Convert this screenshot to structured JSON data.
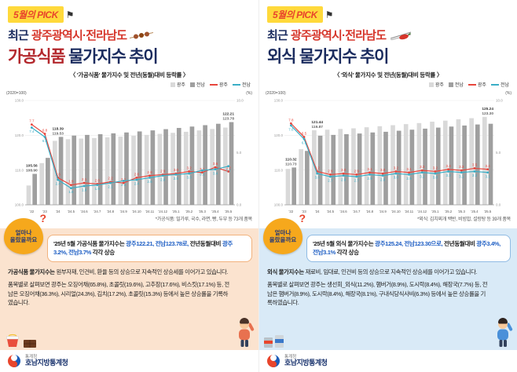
{
  "panels": {
    "left": {
      "badge_label": "5월의 PICK",
      "subtitle_prefix": "최근",
      "subtitle_region": "광주광역시·전라남도",
      "title_highlight": "가공식품",
      "title_rest": " 물가지수 추이",
      "chart_title": "〈 '가공식품' 물가지수 및 전년(동월)대비 등락률 〉",
      "footnote": "*가공식품: 밀가루, 국수, 라면, 빵, 두부 등 73개 품목",
      "question_line1": "얼마나",
      "question_line2": "올랐을까요",
      "question_mark": "?",
      "lead": {
        "s1": "'25년 5월 가공식품 물가지수는 ",
        "s2": "광주122.21, 전남123.78로,",
        "s3": " 전년동월대비 ",
        "s4": "광주3.2%, 전남3.7%",
        "s5": " 각각 상승"
      },
      "body1_bold": "가공식품 물가지수는",
      "body1_rest": " 원부자재, 인건비, 환율 등의 상승으로 지속적인 상승세를 이어가고 있습니다.",
      "body2": "품목별로 살펴보면 광주는 오징어채(65.8%), 초콜릿(19.6%), 고추장(17.6%), 비스킷(17.1%) 등, 전남은 오징어채(36.3%), 시리얼(24.3%), 김치(17.2%), 초콜릿(15.3%) 등에서 높은 상승률을 기록하였습니다."
    },
    "right": {
      "badge_label": "5월의 PICK",
      "subtitle_prefix": "최근",
      "subtitle_region": "광주광역시·전라남도",
      "title_highlight": "외식",
      "title_rest": " 물가지수 추이",
      "chart_title": "〈 '외식' 물가지수 및 전년(동월)대비 등락률 〉",
      "footnote": "*외식: 김치찌개 백반, 비빔밥, 설렁탕 등 39개 품목",
      "question_line1": "얼마나",
      "question_line2": "올랐을까요",
      "question_mark": "?",
      "lead": {
        "s1": "'25년 5월 외식 물가지수는 ",
        "s2": "광주125.24, 전남123.30으로,",
        "s3": " 전년동월대비 ",
        "s4": "광주3.4%, 전남3.1%",
        "s5": " 각각 상승"
      },
      "body1_bold": "외식 물가지수는",
      "body1_rest": " 재료비, 임대료, 인건비 등의 상승으로 지속적인 상승세를 이어가고 있습니다.",
      "body2": "품목별로 살펴보면 광주는 생선회_외식(11.2%), 햄버거(8.9%), 도시락(8.4%), 해장국(7.7%) 등, 전남은 햄버거(8.9%), 도시락(8.4%), 해장국(8.1%), 구내식당식사비(6.3%) 등에서 높은 상승률을 기록하였습니다."
    }
  },
  "legend": {
    "bar1": "광주",
    "bar2": "전남",
    "line1": "광주",
    "line2": "전남"
  },
  "axis": {
    "left_label": "(2020=100)",
    "right_label": "(%)"
  },
  "footer": {
    "agency": "통계청",
    "office": "호남지방통계청"
  },
  "colors": {
    "badge_bg": "#ffd93b",
    "badge_text": "#e8452c",
    "navy": "#1a2b5e",
    "region_red": "#d6362b",
    "highlight_blue": "#1f5fc4",
    "gwangju_line": "#e8453c",
    "jeonnam_line": "#3aaec6",
    "gwangju_bar": "#d9d9d9",
    "jeonnam_bar": "#9f9f9f",
    "left_block_bg": "#fbe3cf",
    "right_block_bg": "#d9eaf7",
    "question_blob": "#f6a81c"
  },
  "chart_data": [
    {
      "type": "bar+line",
      "title": "'가공식품' 물가지수 및 전년(동월)대비 등락률",
      "ylabel_left": "(2020=100)",
      "ylabel_right": "(%)",
      "categories": [
        "'22",
        "'23",
        "'24",
        "'24.5",
        "'24.6",
        "'24.7",
        "'24.8",
        "'24.9",
        "'24.10",
        "'24.11",
        "'24.12",
        "'25.1",
        "'25.2",
        "'25.3",
        "'25.4",
        "'25.5"
      ],
      "bar_series": [
        {
          "name": "광주",
          "color": "#d9d9d9",
          "values": [
            105.56,
            112.0,
            118.39,
            118.87,
            119.05,
            119.2,
            119.4,
            119.6,
            119.85,
            120.1,
            120.4,
            120.7,
            121.0,
            121.4,
            121.8,
            122.21
          ]
        },
        {
          "name": "전남",
          "color": "#9f9f9f",
          "values": [
            108.9,
            113.5,
            119.53,
            119.9,
            120.1,
            120.3,
            120.55,
            120.8,
            121.1,
            121.4,
            121.75,
            122.1,
            122.5,
            122.9,
            123.3,
            123.78
          ]
        }
      ],
      "line_series": [
        {
          "name": "광주",
          "color": "#e8453c",
          "values": [
            7.7,
            6.8,
            2.6,
            1.9,
            2.1,
            2.0,
            2.2,
            2.1,
            2.6,
            2.8,
            2.9,
            3.0,
            3.2,
            3.1,
            3.6,
            3.2
          ]
        },
        {
          "name": "전남",
          "color": "#3aaec6",
          "values": [
            7.4,
            6.5,
            2.4,
            1.6,
            1.8,
            1.9,
            2.1,
            2.3,
            2.4,
            2.6,
            2.8,
            2.9,
            3.0,
            3.3,
            3.4,
            3.7
          ]
        }
      ],
      "ylim_left": [
        100,
        130
      ],
      "ylim_right": [
        0,
        10
      ],
      "left_ticks": [
        100,
        110,
        120,
        130
      ],
      "right_ticks": [
        0,
        5,
        10
      ],
      "bar_label_indices": [
        0,
        2,
        15
      ],
      "legend_position": "top-right",
      "grid": true
    },
    {
      "type": "bar+line",
      "title": "'외식' 물가지수 및 전년(동월)대비 등락률",
      "ylabel_left": "(2020=100)",
      "ylabel_right": "(%)",
      "categories": [
        "'22",
        "'23",
        "'24",
        "'24.5",
        "'24.6",
        "'24.7",
        "'24.8",
        "'24.9",
        "'24.10",
        "'24.11",
        "'24.12",
        "'25.1",
        "'25.2",
        "'25.3",
        "'25.4",
        "'25.5"
      ],
      "bar_series": [
        {
          "name": "광주",
          "color": "#d9d9d9",
          "values": [
            110.32,
            116.0,
            121.44,
            121.6,
            121.8,
            122.0,
            122.3,
            122.6,
            122.9,
            123.2,
            123.5,
            123.9,
            124.2,
            124.6,
            124.9,
            125.24
          ]
        },
        {
          "name": "전남",
          "color": "#9f9f9f",
          "values": [
            110.73,
            115.5,
            119.87,
            120.1,
            120.3,
            120.5,
            120.8,
            121.0,
            121.3,
            121.6,
            121.9,
            122.2,
            122.5,
            122.8,
            123.1,
            123.3
          ]
        }
      ],
      "line_series": [
        {
          "name": "광주",
          "color": "#e8453c",
          "values": [
            7.8,
            6.5,
            3.2,
            2.9,
            3.0,
            2.9,
            3.1,
            3.0,
            3.2,
            3.1,
            3.3,
            3.2,
            3.4,
            3.3,
            3.5,
            3.4
          ]
        },
        {
          "name": "전남",
          "color": "#3aaec6",
          "values": [
            7.6,
            6.3,
            3.0,
            2.7,
            2.8,
            2.7,
            2.9,
            2.8,
            3.0,
            2.9,
            3.1,
            3.0,
            3.2,
            3.1,
            3.2,
            3.1
          ]
        }
      ],
      "ylim_left": [
        100,
        130
      ],
      "ylim_right": [
        0,
        10
      ],
      "left_ticks": [
        100,
        110,
        120,
        130
      ],
      "right_ticks": [
        0,
        5,
        10
      ],
      "bar_label_indices": [
        0,
        2,
        15
      ],
      "legend_position": "top-right",
      "grid": true
    }
  ]
}
